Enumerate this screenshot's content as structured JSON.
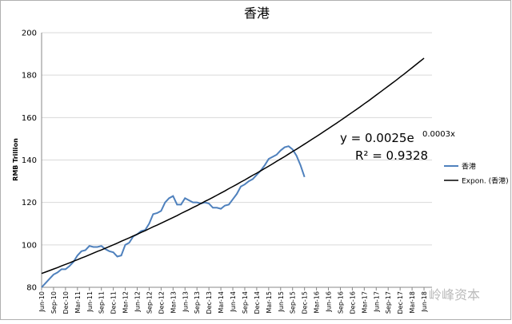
{
  "chart_data": {
    "type": "line",
    "title": "香港",
    "y_label": "RMB Trillion",
    "categories": [
      "Jun-10",
      null,
      null,
      "Sep-10",
      null,
      null,
      "Dec-10",
      null,
      null,
      "Mar-11",
      null,
      null,
      "Jun-11",
      null,
      null,
      "Sep-11",
      null,
      null,
      "Dec-11",
      null,
      null,
      "Mar-12",
      null,
      null,
      "Jun-12",
      null,
      null,
      "Sep-12",
      null,
      null,
      "Dec-12",
      null,
      null,
      "Mar-13",
      null,
      null,
      "Jun-13",
      null,
      null,
      "Sep-13",
      null,
      null,
      "Dec-13",
      null,
      null,
      "Mar-14",
      null,
      null,
      "Jun-14",
      null,
      null,
      "Sep-14",
      null,
      null,
      "Dec-14",
      null,
      null,
      "Mar-15",
      null,
      null,
      "Jun-15",
      null,
      null,
      "Sep-15",
      null,
      null,
      "Dec-15",
      null,
      null,
      "Mar-16",
      null,
      null,
      "Jun-16",
      null,
      null,
      "Sep-16",
      null,
      null,
      "Dec-16",
      null,
      null,
      "Mar-17",
      null,
      null,
      "Jun-17",
      null,
      null,
      "Sep-17",
      null,
      null,
      "Dec-17",
      null,
      null,
      "Mar-18",
      null,
      null,
      "Jun-18"
    ],
    "series": [
      {
        "name": "香港",
        "color": "#4f81bd",
        "width": 2,
        "values": [
          80,
          82,
          84,
          86,
          87,
          88.5,
          88.5,
          90,
          92,
          95,
          97,
          97.5,
          99.5,
          99,
          99,
          99.5,
          98,
          97,
          96.5,
          94.5,
          95,
          100,
          101,
          104,
          105,
          106.5,
          107,
          110,
          114.5,
          115,
          116,
          120,
          122,
          123,
          119,
          119,
          122,
          121,
          120,
          120,
          119.5,
          120,
          119.5,
          117.5,
          117.5,
          117,
          118.5,
          119,
          121.5,
          124,
          127.5,
          128.5,
          130,
          131,
          133,
          135,
          137.5,
          140.5,
          141.5,
          142.5,
          144.5,
          146,
          146.5,
          145,
          142,
          137.5,
          132,
          null,
          null,
          null,
          null,
          null,
          null,
          null,
          null,
          null,
          null,
          null,
          null,
          null,
          null,
          null,
          null,
          null,
          null,
          null,
          null,
          null,
          null,
          null,
          null,
          null,
          null,
          null,
          null,
          null,
          null
        ]
      },
      {
        "name": "Expon. (香港)",
        "color": "#000000",
        "width": 1.5,
        "values": [
          86.5,
          87.2,
          87.9,
          88.6,
          89.3,
          90.1,
          90.8,
          91.5,
          92.3,
          93.0,
          93.8,
          94.5,
          95.3,
          96.1,
          96.9,
          97.6,
          98.4,
          99.2,
          100.0,
          100.8,
          101.7,
          102.5,
          103.3,
          104.2,
          105.0,
          105.9,
          106.7,
          107.6,
          108.5,
          109.3,
          110.2,
          111.1,
          112.0,
          112.9,
          113.8,
          114.8,
          115.7,
          116.6,
          117.6,
          118.5,
          119.5,
          120.5,
          121.4,
          122.4,
          123.4,
          124.4,
          125.4,
          126.5,
          127.5,
          128.5,
          129.6,
          130.6,
          131.7,
          132.8,
          133.8,
          134.9,
          136.0,
          137.1,
          138.2,
          139.4,
          140.5,
          141.6,
          142.8,
          144.0,
          145.1,
          146.3,
          147.5,
          148.7,
          149.9,
          151.1,
          152.3,
          153.6,
          154.8,
          156.1,
          157.3,
          158.6,
          159.9,
          161.2,
          162.5,
          163.8,
          165.1,
          166.5,
          167.8,
          169.2,
          170.6,
          172.0,
          173.4,
          174.8,
          176.2,
          177.6,
          179.1,
          180.5,
          182.0,
          183.5,
          185.0,
          186.5,
          188.0
        ]
      }
    ],
    "ylim": [
      80,
      200
    ],
    "yticks": [
      80,
      100,
      120,
      140,
      160,
      180,
      200
    ],
    "grid": true,
    "annotations": {
      "equation": "y = 0.0025e",
      "exponent": "0.0003x",
      "r_squared": "R² = 0.9328"
    },
    "watermark": "岭峰资本",
    "legend": "right"
  }
}
